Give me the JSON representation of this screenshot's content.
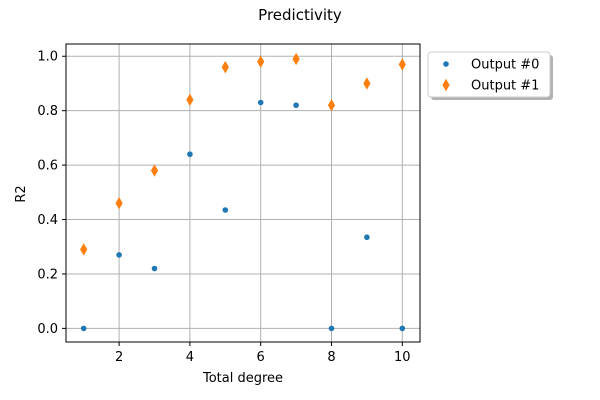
{
  "chart_data": {
    "type": "scatter",
    "title": "Predictivity",
    "xlabel": "Total degree",
    "ylabel": "R2",
    "xlim": [
      0.5,
      10.5
    ],
    "ylim": [
      -0.05,
      1.045
    ],
    "xticks": [
      2,
      4,
      6,
      8,
      10
    ],
    "xtick_labels": [
      "2",
      "4",
      "6",
      "8",
      "10"
    ],
    "yticks": [
      0.0,
      0.2,
      0.4,
      0.6,
      0.8,
      1.0
    ],
    "ytick_labels": [
      "0.0",
      "0.2",
      "0.4",
      "0.6",
      "0.8",
      "1.0"
    ],
    "grid": true,
    "legend_placement": "outside-top-right",
    "x": [
      1,
      2,
      3,
      4,
      5,
      6,
      7,
      8,
      9,
      10
    ],
    "series": [
      {
        "name": "Output #0",
        "marker": "circle",
        "color": "#1f77b4",
        "values": [
          0.0,
          0.27,
          0.22,
          0.64,
          0.435,
          0.83,
          0.82,
          0.0,
          0.335,
          0.0
        ]
      },
      {
        "name": "Output #1",
        "marker": "thin-diamond",
        "color": "#ff7f0e",
        "values": [
          0.29,
          0.46,
          0.58,
          0.84,
          0.96,
          0.98,
          0.99,
          0.82,
          0.9,
          0.97
        ]
      }
    ]
  }
}
